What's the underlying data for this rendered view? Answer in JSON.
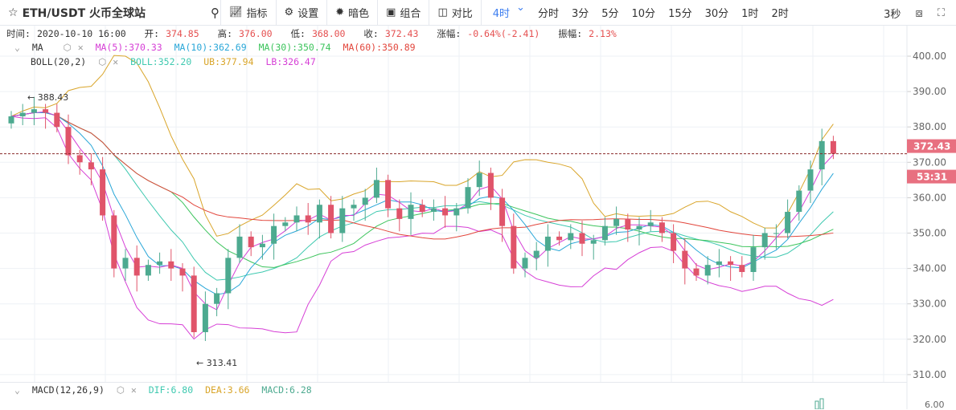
{
  "header": {
    "star_icon": "star-icon",
    "symbol": "ETH/USDT 火币全球站",
    "search_icon": "search-icon",
    "tools": [
      {
        "icon": "indicator-icon",
        "label": "指标"
      },
      {
        "icon": "gear-icon",
        "label": "设置"
      },
      {
        "icon": "sun-icon",
        "label": "暗色"
      },
      {
        "icon": "layout-icon",
        "label": "组合"
      },
      {
        "icon": "compare-icon",
        "label": "对比"
      }
    ],
    "periods": [
      "4时",
      "分时",
      "3分",
      "5分",
      "10分",
      "15分",
      "30分",
      "1时",
      "2时"
    ],
    "active_period": "4时",
    "refresh": "3秒",
    "camera_icon": "camera-icon",
    "fullscreen_icon": "fullscreen-icon"
  },
  "info": {
    "time_label": "时间:",
    "time": "2020-10-10 16:00",
    "open_label": "开:",
    "open": "374.85",
    "high_label": "高:",
    "high": "376.00",
    "low_label": "低:",
    "low": "368.00",
    "close_label": "收:",
    "close": "372.43",
    "change_label": "涨幅:",
    "change": "-0.64%(-2.41)",
    "amp_label": "振幅:",
    "amp": "2.13%"
  },
  "ma": {
    "name": "MA",
    "ma5": "MA(5):370.33",
    "ma10": "MA(10):362.69",
    "ma30": "MA(30):350.74",
    "ma60": "MA(60):350.89"
  },
  "boll": {
    "name": "BOLL(20,2)",
    "mid": "BOLL:352.20",
    "ub": "UB:377.94",
    "lb": "LB:326.47"
  },
  "macd": {
    "name": "MACD(12,26,9)",
    "dif": "DIF:6.80",
    "dea": "DEA:3.66",
    "macd": "MACD:6.28",
    "axis_tick": "6.00"
  },
  "colors": {
    "up": "#4daa90",
    "down": "#e0546a",
    "ma5": "#d63fd6",
    "ma10": "#2aa7d8",
    "ma30": "#3cc45c",
    "ma60": "#e2463c",
    "boll": "#3fc9b0",
    "ub": "#d9a52a",
    "lb": "#d63fd6",
    "accent": "#3d7ef0"
  },
  "chart_data": {
    "type": "candlestick",
    "yticks": [
      310,
      320,
      330,
      340,
      350,
      360,
      370,
      380,
      390,
      400
    ],
    "ylim": [
      308,
      403
    ],
    "ytick_labels": [
      "310.00",
      "320.00",
      "330.00",
      "340.00",
      "350.00",
      "360.00",
      "370.00",
      "380.00",
      "390.00",
      "400.00"
    ],
    "closes": [
      383,
      384,
      385,
      384,
      380,
      372,
      370,
      368,
      355,
      340,
      343,
      338,
      341,
      342,
      340,
      338,
      322,
      330,
      333,
      343,
      349,
      346,
      347,
      352,
      353,
      355,
      353,
      358,
      350,
      357,
      358,
      360,
      365,
      357,
      354,
      358,
      356,
      357,
      355,
      357,
      363,
      367,
      360,
      352,
      340,
      343,
      345,
      349,
      348,
      350,
      347,
      348,
      352,
      354,
      351,
      352,
      353,
      350,
      345,
      340,
      338,
      341,
      342,
      341,
      339,
      346,
      350,
      350,
      356,
      362,
      368,
      376,
      372.43
    ],
    "current_price": "372.43",
    "countdown": "53:31",
    "annotations": [
      {
        "label": "← 388.43",
        "price": 388.43
      },
      {
        "label": "← 313.41",
        "price": 313.41
      }
    ]
  }
}
